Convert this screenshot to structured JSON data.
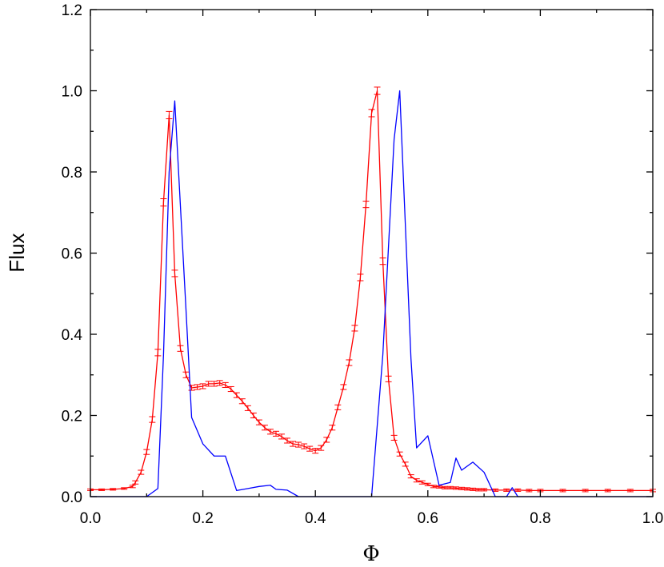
{
  "chart_data": {
    "type": "line",
    "title": "",
    "xlabel": "Φ",
    "ylabel": "Flux",
    "xlim": [
      0.0,
      1.0
    ],
    "ylim": [
      0.0,
      1.2
    ],
    "xticks": [
      "0.0",
      "0.2",
      "0.4",
      "0.6",
      "0.8",
      "1.0"
    ],
    "yticks": [
      "0.0",
      "0.2",
      "0.4",
      "0.6",
      "0.8",
      "1.0",
      "1.2"
    ],
    "grid": false,
    "legend": "none",
    "series": [
      {
        "color": "#ff0000",
        "error_bars": true,
        "x": [
          0.0,
          0.02,
          0.04,
          0.06,
          0.075,
          0.08,
          0.09,
          0.1,
          0.11,
          0.12,
          0.13,
          0.14,
          0.15,
          0.16,
          0.17,
          0.18,
          0.19,
          0.2,
          0.21,
          0.22,
          0.23,
          0.24,
          0.25,
          0.26,
          0.27,
          0.28,
          0.29,
          0.3,
          0.31,
          0.32,
          0.33,
          0.34,
          0.35,
          0.36,
          0.37,
          0.38,
          0.39,
          0.4,
          0.41,
          0.42,
          0.43,
          0.44,
          0.45,
          0.46,
          0.47,
          0.48,
          0.49,
          0.5,
          0.51,
          0.52,
          0.53,
          0.54,
          0.55,
          0.56,
          0.57,
          0.58,
          0.59,
          0.6,
          0.61,
          0.62,
          0.63,
          0.64,
          0.65,
          0.66,
          0.67,
          0.68,
          0.69,
          0.7,
          0.72,
          0.74,
          0.76,
          0.78,
          0.8,
          0.84,
          0.88,
          0.92,
          0.96,
          1.0
        ],
        "y": [
          0.017,
          0.017,
          0.018,
          0.02,
          0.025,
          0.035,
          0.06,
          0.11,
          0.19,
          0.355,
          0.725,
          0.94,
          0.55,
          0.365,
          0.3,
          0.268,
          0.27,
          0.272,
          0.278,
          0.278,
          0.28,
          0.275,
          0.265,
          0.25,
          0.235,
          0.218,
          0.2,
          0.183,
          0.17,
          0.16,
          0.155,
          0.148,
          0.138,
          0.13,
          0.128,
          0.124,
          0.118,
          0.113,
          0.12,
          0.14,
          0.17,
          0.22,
          0.27,
          0.33,
          0.415,
          0.54,
          0.72,
          0.945,
          1.0,
          0.58,
          0.29,
          0.145,
          0.105,
          0.08,
          0.05,
          0.04,
          0.035,
          0.03,
          0.025,
          0.024,
          0.022,
          0.022,
          0.021,
          0.02,
          0.019,
          0.018,
          0.017,
          0.017,
          0.016,
          0.016,
          0.016,
          0.015,
          0.015,
          0.015,
          0.015,
          0.015,
          0.015,
          0.015
        ],
        "errors": [
          0.002,
          0.002,
          0.002,
          0.002,
          0.003,
          0.004,
          0.005,
          0.006,
          0.007,
          0.008,
          0.009,
          0.009,
          0.008,
          0.007,
          0.007,
          0.006,
          0.006,
          0.006,
          0.006,
          0.006,
          0.006,
          0.006,
          0.006,
          0.006,
          0.006,
          0.006,
          0.006,
          0.006,
          0.006,
          0.006,
          0.006,
          0.006,
          0.006,
          0.006,
          0.006,
          0.006,
          0.006,
          0.006,
          0.006,
          0.006,
          0.006,
          0.006,
          0.006,
          0.007,
          0.007,
          0.008,
          0.008,
          0.009,
          0.009,
          0.008,
          0.007,
          0.006,
          0.005,
          0.005,
          0.004,
          0.004,
          0.004,
          0.003,
          0.003,
          0.003,
          0.003,
          0.003,
          0.003,
          0.003,
          0.003,
          0.003,
          0.003,
          0.003,
          0.003,
          0.003,
          0.003,
          0.003,
          0.003,
          0.003,
          0.003,
          0.003,
          0.003,
          0.003
        ]
      },
      {
        "color": "#0000ff",
        "error_bars": false,
        "x": [
          0.0,
          0.08,
          0.1,
          0.12,
          0.13,
          0.14,
          0.15,
          0.17,
          0.18,
          0.2,
          0.22,
          0.24,
          0.26,
          0.28,
          0.3,
          0.32,
          0.33,
          0.35,
          0.37,
          0.4,
          0.45,
          0.5,
          0.52,
          0.54,
          0.55,
          0.57,
          0.58,
          0.6,
          0.62,
          0.64,
          0.65,
          0.66,
          0.68,
          0.7,
          0.72,
          0.74,
          0.75,
          0.76,
          0.78,
          0.8,
          0.9,
          1.0
        ],
        "y": [
          0.0,
          0.0,
          0.0,
          0.02,
          0.35,
          0.8,
          0.975,
          0.46,
          0.195,
          0.13,
          0.1,
          0.1,
          0.015,
          0.02,
          0.025,
          0.028,
          0.018,
          0.016,
          0.0,
          0.0,
          0.0,
          0.0,
          0.35,
          0.88,
          1.0,
          0.34,
          0.12,
          0.15,
          0.028,
          0.035,
          0.095,
          0.065,
          0.085,
          0.06,
          0.0,
          0.0,
          0.022,
          0.0,
          0.0,
          0.0,
          0.0,
          0.0
        ]
      }
    ]
  }
}
